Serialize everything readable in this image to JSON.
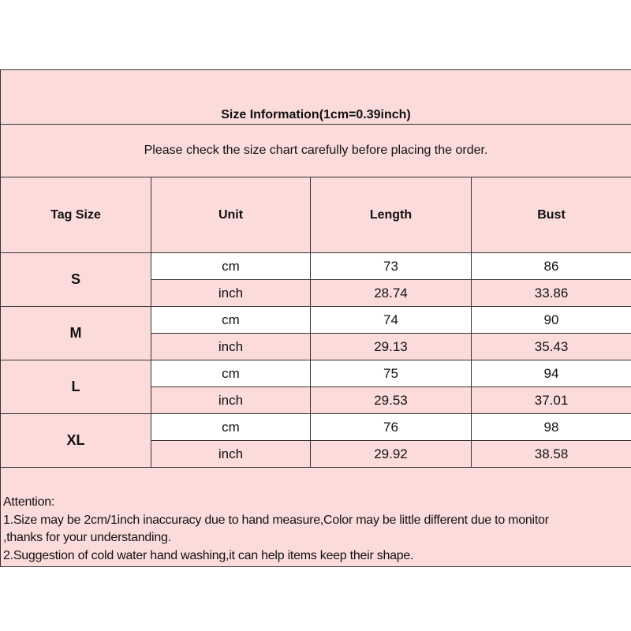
{
  "title": "Size Information(1cm=0.39inch)",
  "subtitle": "Please check the size chart carefully before placing the order.",
  "headers": [
    "Tag Size",
    "Unit",
    "Length",
    "Bust"
  ],
  "sizes": [
    {
      "tag": "S",
      "rows": [
        {
          "unit": "cm",
          "length": "73",
          "bust": "86"
        },
        {
          "unit": "inch",
          "length": "28.74",
          "bust": "33.86"
        }
      ]
    },
    {
      "tag": "M",
      "rows": [
        {
          "unit": "cm",
          "length": "74",
          "bust": "90"
        },
        {
          "unit": "inch",
          "length": "29.13",
          "bust": "35.43"
        }
      ]
    },
    {
      "tag": "L",
      "rows": [
        {
          "unit": "cm",
          "length": "75",
          "bust": "94"
        },
        {
          "unit": "inch",
          "length": "29.53",
          "bust": "37.01"
        }
      ]
    },
    {
      "tag": "XL",
      "rows": [
        {
          "unit": "cm",
          "length": "76",
          "bust": "98"
        },
        {
          "unit": "inch",
          "length": "29.92",
          "bust": "38.58"
        }
      ]
    }
  ],
  "attention": {
    "heading": "Attention:",
    "lines": [
      "1.Size may be 2cm/1inch inaccuracy due to hand measure,Color may be little different due to monitor",
      ",thanks for your understanding.",
      "2.Suggestion of cold water hand washing,it can help items keep their shape."
    ]
  },
  "colors": {
    "pink": "#fcdcdb",
    "white": "#ffffff",
    "border": "#333333"
  }
}
